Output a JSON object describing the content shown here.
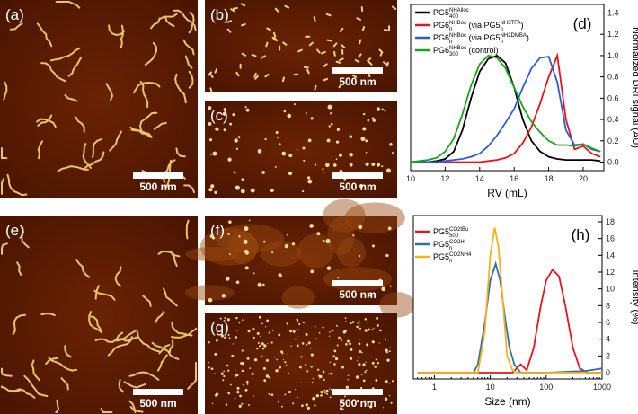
{
  "panels": [
    {
      "label": "(a)",
      "scale_bar": "500 nm"
    },
    {
      "label": "(b)",
      "scale_bar": "500 nm"
    },
    {
      "label": "(c)",
      "scale_bar": "500 nm"
    },
    {
      "label": "(e)",
      "scale_bar": "500 nm"
    },
    {
      "label": "(f)",
      "scale_bar": "500 nm"
    },
    {
      "label": "(g)",
      "scale_bar": "500 nm"
    }
  ],
  "chart_data": [
    {
      "type": "line",
      "panel_label": "(d)",
      "xlabel": "RV (mL)",
      "ylabel": "Normalized DRI signal (AU)",
      "y_axis_side": "right",
      "xlim": [
        10,
        21.2
      ],
      "xticks": [
        10,
        12,
        14,
        16,
        18,
        20
      ],
      "ylim": [
        -0.08,
        1.48
      ],
      "yticks": [
        {
          "value": 0,
          "label": "0.0"
        },
        {
          "value": 0.2,
          "label": "0.2"
        },
        {
          "value": 0.4,
          "label": "0.4"
        },
        {
          "value": 0.6,
          "label": "0.6"
        },
        {
          "value": 0.8,
          "label": "0.8"
        },
        {
          "value": 1,
          "label": "1.0"
        },
        {
          "value": 1.2,
          "label": "1.2"
        },
        {
          "value": 1.4,
          "label": "1.4"
        }
      ],
      "x": [
        10,
        10.5,
        11,
        11.5,
        12,
        12.5,
        13,
        13.5,
        14,
        14.5,
        15,
        15.5,
        16,
        16.5,
        17,
        17.5,
        18,
        18.5,
        19,
        19.5,
        20,
        20.5,
        21
      ],
      "series": [
        {
          "name_parts": [
            {
              "t": "PG5",
              "sup": "NHAlloc",
              "sub": "400"
            }
          ],
          "color": "#000000",
          "values": [
            0,
            0,
            0,
            0.01,
            0.03,
            0.1,
            0.3,
            0.6,
            0.85,
            0.97,
            1.0,
            0.93,
            0.7,
            0.4,
            0.2,
            0.1,
            0.05,
            0.03,
            0.02,
            0.02,
            0.02,
            0.02,
            0.01
          ]
        },
        {
          "name_parts": [
            {
              "t": "PG6",
              "sup": "NHBoc",
              "sub": "n"
            },
            {
              "t": " (via PG5",
              "sup": "NH3TFA",
              "sub": "n"
            },
            {
              "t": ")"
            }
          ],
          "color": "#e8141c",
          "values": [
            0,
            0,
            0,
            0,
            0,
            0,
            0,
            0,
            0,
            0.01,
            0.02,
            0.04,
            0.08,
            0.18,
            0.33,
            0.55,
            0.8,
            1.0,
            0.4,
            0.12,
            0.15,
            0.08,
            0.05
          ]
        },
        {
          "name_parts": [
            {
              "t": "PG6",
              "sup": "NHBoc",
              "sub": "n"
            },
            {
              "t": " (via PG5",
              "sup": "NH2DMBA",
              "sub": "n"
            },
            {
              "t": ")"
            }
          ],
          "color": "#2a5bd7",
          "values": [
            0,
            0,
            0,
            0,
            0.01,
            0.02,
            0.03,
            0.05,
            0.08,
            0.15,
            0.25,
            0.37,
            0.5,
            0.7,
            0.88,
            0.98,
            0.99,
            0.75,
            0.3,
            0.16,
            0.17,
            0.12,
            0.1
          ]
        },
        {
          "name_parts": [
            {
              "t": "PG6",
              "sup": "NHBoc",
              "sub": "300"
            },
            {
              "t": " (control)"
            }
          ],
          "color": "#1aa31a",
          "values": [
            0,
            0.01,
            0.02,
            0.04,
            0.1,
            0.22,
            0.45,
            0.72,
            0.92,
            1.0,
            0.98,
            0.88,
            0.7,
            0.52,
            0.38,
            0.28,
            0.2,
            0.16,
            0.16,
            0.15,
            0.17,
            0.13,
            0.1
          ]
        }
      ]
    },
    {
      "type": "line",
      "panel_label": "(h)",
      "xlabel": "Size (nm)",
      "ylabel": "Intensity (%)",
      "y_axis_side": "right",
      "log_x": true,
      "xlim": [
        0.42,
        1000
      ],
      "xticks": [
        1,
        10,
        100,
        1000
      ],
      "ylim": [
        -0.75,
        18.75
      ],
      "yticks": [
        0,
        2,
        4,
        6,
        8,
        10,
        12,
        14,
        16,
        18
      ],
      "series": [
        {
          "name_parts": [
            {
              "t": "PG5",
              "sup": "CO2tBu",
              "sub": "500"
            }
          ],
          "color": "#e8141c",
          "x": [
            0.5,
            25,
            35,
            45,
            60,
            80,
            100,
            130,
            170,
            220,
            300,
            400,
            550,
            1000
          ],
          "values": [
            0,
            0,
            1,
            0.3,
            3,
            8,
            11,
            12.3,
            11.5,
            8,
            3,
            0.5,
            0,
            0
          ]
        },
        {
          "name_parts": [
            {
              "t": "PG5",
              "sup": "CO2H",
              "sub": "n"
            }
          ],
          "color": "#2f6db5",
          "x": [
            5,
            6,
            8,
            10,
            12.5,
            15,
            18,
            22,
            27,
            35,
            100,
            500,
            1000
          ],
          "values": [
            0,
            1,
            6,
            11,
            13,
            11,
            7,
            3,
            1,
            0,
            0,
            0.2,
            0.5
          ]
        },
        {
          "name_parts": [
            {
              "t": "PG5",
              "sup": "CO2NH4",
              "sub": "n"
            }
          ],
          "color": "#f5b21a",
          "x": [
            0.5,
            6,
            8,
            10,
            12,
            14,
            17,
            20,
            25,
            30,
            1000
          ],
          "values": [
            0,
            0,
            5,
            14,
            17.3,
            15,
            8,
            2,
            0.3,
            0,
            0
          ]
        }
      ]
    }
  ]
}
